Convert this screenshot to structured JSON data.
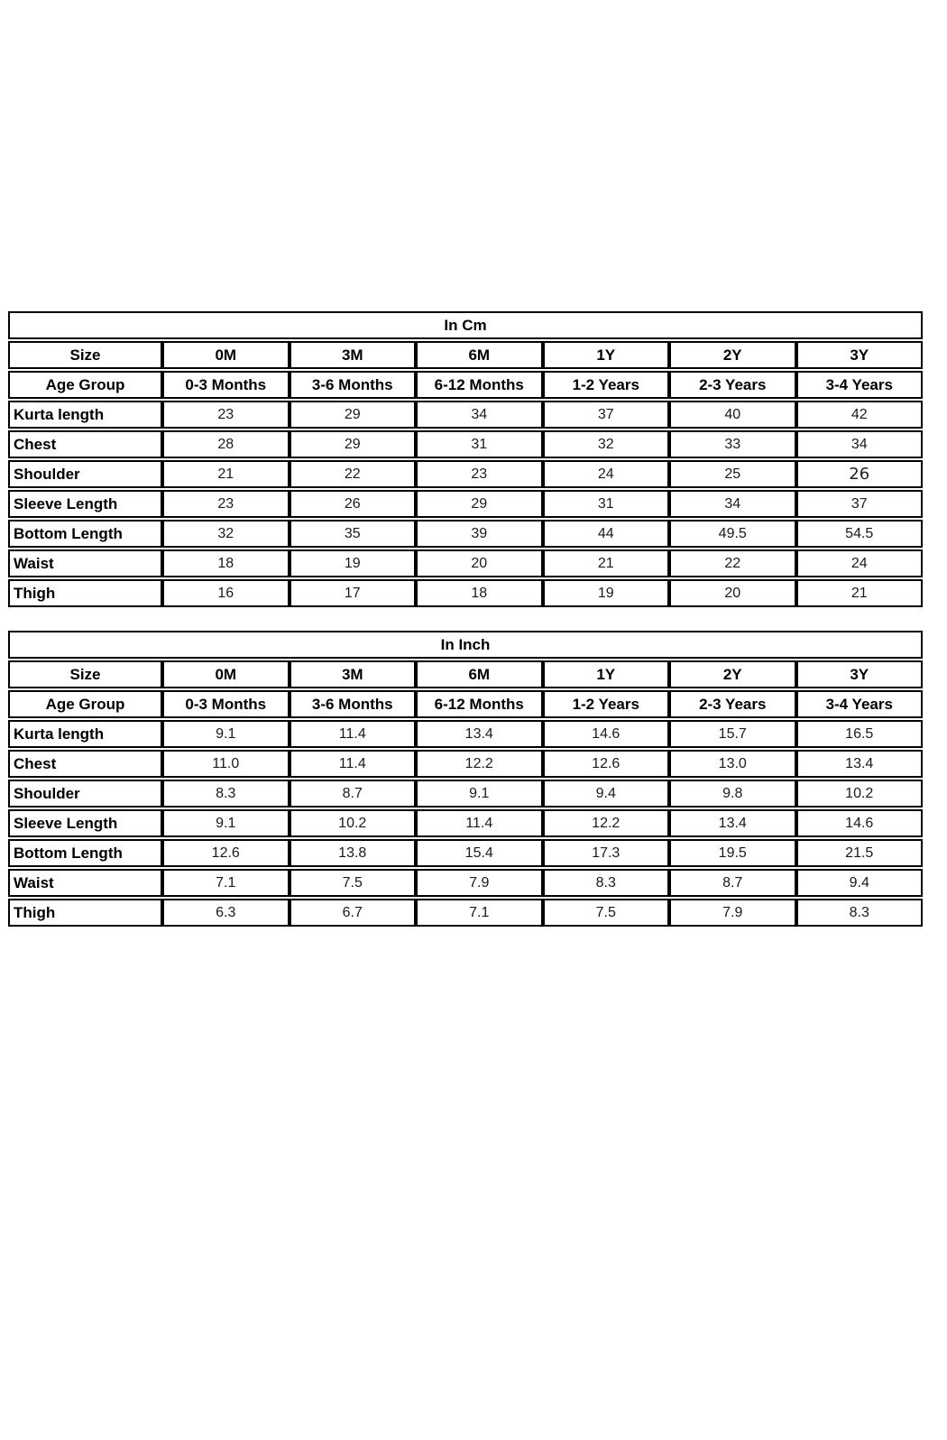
{
  "page": {
    "background": "#ffffff",
    "description": "Kids kurta set size chart with measurements in centimeters and inches"
  },
  "style": {
    "header_fill": "#a6d7f3",
    "border_color": "#000000"
  },
  "tables": [
    {
      "id": "cm",
      "title": "In Cm",
      "size_label": "Size",
      "age_label": "Age Group",
      "sizes": [
        "0M",
        "3M",
        "6M",
        "1Y",
        "2Y",
        "3Y"
      ],
      "age_groups": [
        "0-3 Months",
        "3-6 Months",
        "6-12 Months",
        "1-2 Years",
        "2-3 Years",
        "3-4 Years"
      ],
      "rows": [
        {
          "label": "Kurta length",
          "values": [
            "23",
            "29",
            "34",
            "37",
            "40",
            "42"
          ]
        },
        {
          "label": "Chest",
          "values": [
            "28",
            "29",
            "31",
            "32",
            "33",
            "34"
          ]
        },
        {
          "label": "Shoulder",
          "values": [
            "21",
            "22",
            "23",
            "24",
            "25",
            "26"
          ],
          "special_col": 5
        },
        {
          "label": "Sleeve Length",
          "values": [
            "23",
            "26",
            "29",
            "31",
            "34",
            "37"
          ]
        },
        {
          "label": "Bottom Length",
          "values": [
            "32",
            "35",
            "39",
            "44",
            "49.5",
            "54.5"
          ]
        },
        {
          "label": "Waist",
          "values": [
            "18",
            "19",
            "20",
            "21",
            "22",
            "24"
          ]
        },
        {
          "label": "Thigh",
          "values": [
            "16",
            "17",
            "18",
            "19",
            "20",
            "21"
          ]
        }
      ]
    },
    {
      "id": "inch",
      "title": "In Inch",
      "size_label": "Size",
      "age_label": "Age Group",
      "sizes": [
        "0M",
        "3M",
        "6M",
        "1Y",
        "2Y",
        "3Y"
      ],
      "age_groups": [
        "0-3 Months",
        "3-6 Months",
        "6-12 Months",
        "1-2 Years",
        "2-3 Years",
        "3-4 Years"
      ],
      "rows": [
        {
          "label": "Kurta length",
          "values": [
            "9.1",
            "11.4",
            "13.4",
            "14.6",
            "15.7",
            "16.5"
          ]
        },
        {
          "label": "Chest",
          "values": [
            "11.0",
            "11.4",
            "12.2",
            "12.6",
            "13.0",
            "13.4"
          ]
        },
        {
          "label": "Shoulder",
          "values": [
            "8.3",
            "8.7",
            "9.1",
            "9.4",
            "9.8",
            "10.2"
          ]
        },
        {
          "label": "Sleeve Length",
          "values": [
            "9.1",
            "10.2",
            "11.4",
            "12.2",
            "13.4",
            "14.6"
          ]
        },
        {
          "label": "Bottom Length",
          "values": [
            "12.6",
            "13.8",
            "15.4",
            "17.3",
            "19.5",
            "21.5"
          ]
        },
        {
          "label": "Waist",
          "values": [
            "7.1",
            "7.5",
            "7.9",
            "8.3",
            "8.7",
            "9.4"
          ]
        },
        {
          "label": "Thigh",
          "values": [
            "6.3",
            "6.7",
            "7.1",
            "7.5",
            "7.9",
            "8.3"
          ]
        }
      ]
    }
  ]
}
